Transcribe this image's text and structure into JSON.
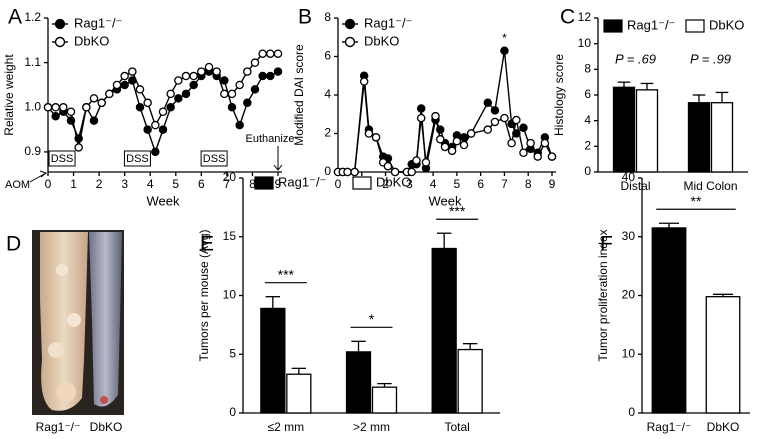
{
  "chart_data": [
    {
      "panel": "A",
      "type": "line",
      "ylabel": "Relative  weight",
      "xlabel": "Week",
      "xlim": [
        0,
        9
      ],
      "ylim": [
        0.855,
        1.2
      ],
      "xticks": [
        0,
        1,
        2,
        3,
        4,
        5,
        6,
        7,
        8,
        9
      ],
      "yticks": [
        0.9,
        {
          "value": 1.0,
          "label": "1.0"
        },
        1.1,
        1.2
      ],
      "legend": "upper left",
      "x": [
        0,
        0.3,
        0.6,
        0.9,
        1.2,
        1.5,
        1.8,
        2.1,
        2.4,
        2.7,
        3.0,
        3.3,
        3.6,
        3.9,
        4.2,
        4.5,
        4.8,
        5.1,
        5.4,
        5.7,
        6.0,
        6.3,
        6.6,
        6.9,
        7.2,
        7.5,
        7.8,
        8.1,
        8.4,
        8.7,
        9.0
      ],
      "series": [
        {
          "name": "Rag1⁻/⁻",
          "color": "#000000",
          "marker_fill": "#000000",
          "values": [
            1.0,
            0.98,
            0.99,
            0.97,
            0.93,
            1.0,
            0.97,
            1.01,
            1.03,
            1.04,
            1.05,
            1.06,
            1.0,
            0.95,
            0.9,
            0.95,
            1.0,
            1.02,
            1.03,
            1.05,
            1.07,
            1.08,
            1.07,
            1.06,
            1.0,
            0.96,
            1.01,
            1.04,
            1.07,
            1.07,
            1.08
          ]
        },
        {
          "name": "DbKO",
          "color": "#000000",
          "marker_fill": "#ffffff",
          "values": [
            1.0,
            1.0,
            1.0,
            0.99,
            0.91,
            1.0,
            1.02,
            1.01,
            1.03,
            1.05,
            1.07,
            1.08,
            1.04,
            1.01,
            0.96,
            0.99,
            1.03,
            1.06,
            1.07,
            1.07,
            1.08,
            1.09,
            1.08,
            1.03,
            1.03,
            1.05,
            1.08,
            1.1,
            1.12,
            1.12,
            1.12
          ]
        }
      ],
      "annotations": [
        "DSS",
        "DSS",
        "DSS",
        "AOM",
        "Euthanize"
      ]
    },
    {
      "panel": "B",
      "type": "line",
      "ylabel": "Modified DAI score",
      "xlabel": "Week",
      "xlim": [
        0,
        9
      ],
      "ylim": [
        0,
        8
      ],
      "xticks": [
        0,
        1,
        2,
        3,
        4,
        5,
        6,
        7,
        8,
        9
      ],
      "yticks": [
        0,
        2,
        4,
        6,
        8
      ],
      "legend": "upper left",
      "x": [
        0,
        0.2,
        0.4,
        0.7,
        1.1,
        1.3,
        1.6,
        1.9,
        2.1,
        2.4,
        2.9,
        3.1,
        3.3,
        3.5,
        3.7,
        4.1,
        4.3,
        4.5,
        4.8,
        5.0,
        5.3,
        5.6,
        6.3,
        6.6,
        7.0,
        7.3,
        7.5,
        7.8,
        8.1,
        8.4,
        8.7,
        9.0
      ],
      "series": [
        {
          "name": "Rag1⁻/⁻",
          "color": "#000000",
          "marker_fill": "#000000",
          "values": [
            0,
            0,
            0,
            0,
            5.0,
            2.2,
            1.8,
            0.8,
            0.7,
            0,
            0,
            0.4,
            0.4,
            3.3,
            0.2,
            2.7,
            2.2,
            1.5,
            1.3,
            1.9,
            1.8,
            2.0,
            3.6,
            3.2,
            6.3,
            2.5,
            2.0,
            2.3,
            1.2,
            1.0,
            1.8,
            0.8
          ]
        },
        {
          "name": "DbKO",
          "color": "#000000",
          "marker_fill": "#ffffff",
          "values": [
            0,
            0,
            0,
            0,
            4.7,
            2.0,
            1.8,
            0.5,
            0.3,
            0,
            0,
            0,
            0.6,
            2.8,
            0.5,
            2.9,
            1.7,
            1.3,
            1.1,
            1.6,
            1.4,
            2.0,
            2.2,
            2.6,
            2.8,
            1.5,
            2.7,
            1.0,
            1.5,
            0.8,
            1.5,
            0.8
          ]
        }
      ],
      "annotations": [
        "*"
      ]
    },
    {
      "panel": "C",
      "type": "bar",
      "ylabel": "Histology score",
      "ylim": [
        0,
        12
      ],
      "yticks": [
        0,
        2,
        4,
        6,
        8,
        10,
        12
      ],
      "legend": "upper center",
      "categories": [
        "Distal",
        "Mid Colon"
      ],
      "series": [
        {
          "name": "Rag1⁻/⁻",
          "color": "#000000",
          "values": [
            6.6,
            5.4
          ],
          "errors": [
            0.4,
            0.6
          ]
        },
        {
          "name": "DbKO",
          "color": "#ffffff",
          "values": [
            6.4,
            5.4
          ],
          "errors": [
            0.5,
            0.8
          ]
        }
      ],
      "annotations": [
        "P = .69",
        "P = .99"
      ]
    },
    {
      "panel": "E",
      "type": "bar",
      "ylabel": "Tumors per mouse (Avg)",
      "ylim": [
        0,
        20
      ],
      "yticks": [
        0,
        5,
        10,
        15,
        20
      ],
      "legend": "upper left",
      "categories": [
        "≤2 mm",
        ">2 mm",
        "Total"
      ],
      "series": [
        {
          "name": "Rag1⁻/⁻",
          "color": "#000000",
          "values": [
            8.9,
            5.2,
            14.0
          ],
          "errors": [
            1.0,
            0.9,
            1.3
          ]
        },
        {
          "name": "DbKO",
          "color": "#ffffff",
          "values": [
            3.3,
            2.2,
            5.4
          ],
          "errors": [
            0.5,
            0.3,
            0.5
          ]
        }
      ],
      "significance": [
        "***",
        "*",
        "***"
      ]
    },
    {
      "panel": "F",
      "type": "bar",
      "ylabel": "Tumor proliferation index",
      "ylim": [
        0,
        40
      ],
      "yticks": [
        0,
        10,
        20,
        30,
        40
      ],
      "categories": [
        "Rag1⁻/⁻",
        "DbKO"
      ],
      "values": [
        31.5,
        19.8
      ],
      "errors": [
        0.8,
        0.4
      ],
      "colors": [
        "#000000",
        "#ffffff"
      ],
      "significance": [
        "**"
      ]
    }
  ],
  "photo": {
    "panel": "D",
    "labels": [
      "Rag1⁻/⁻",
      "DbKO"
    ]
  }
}
